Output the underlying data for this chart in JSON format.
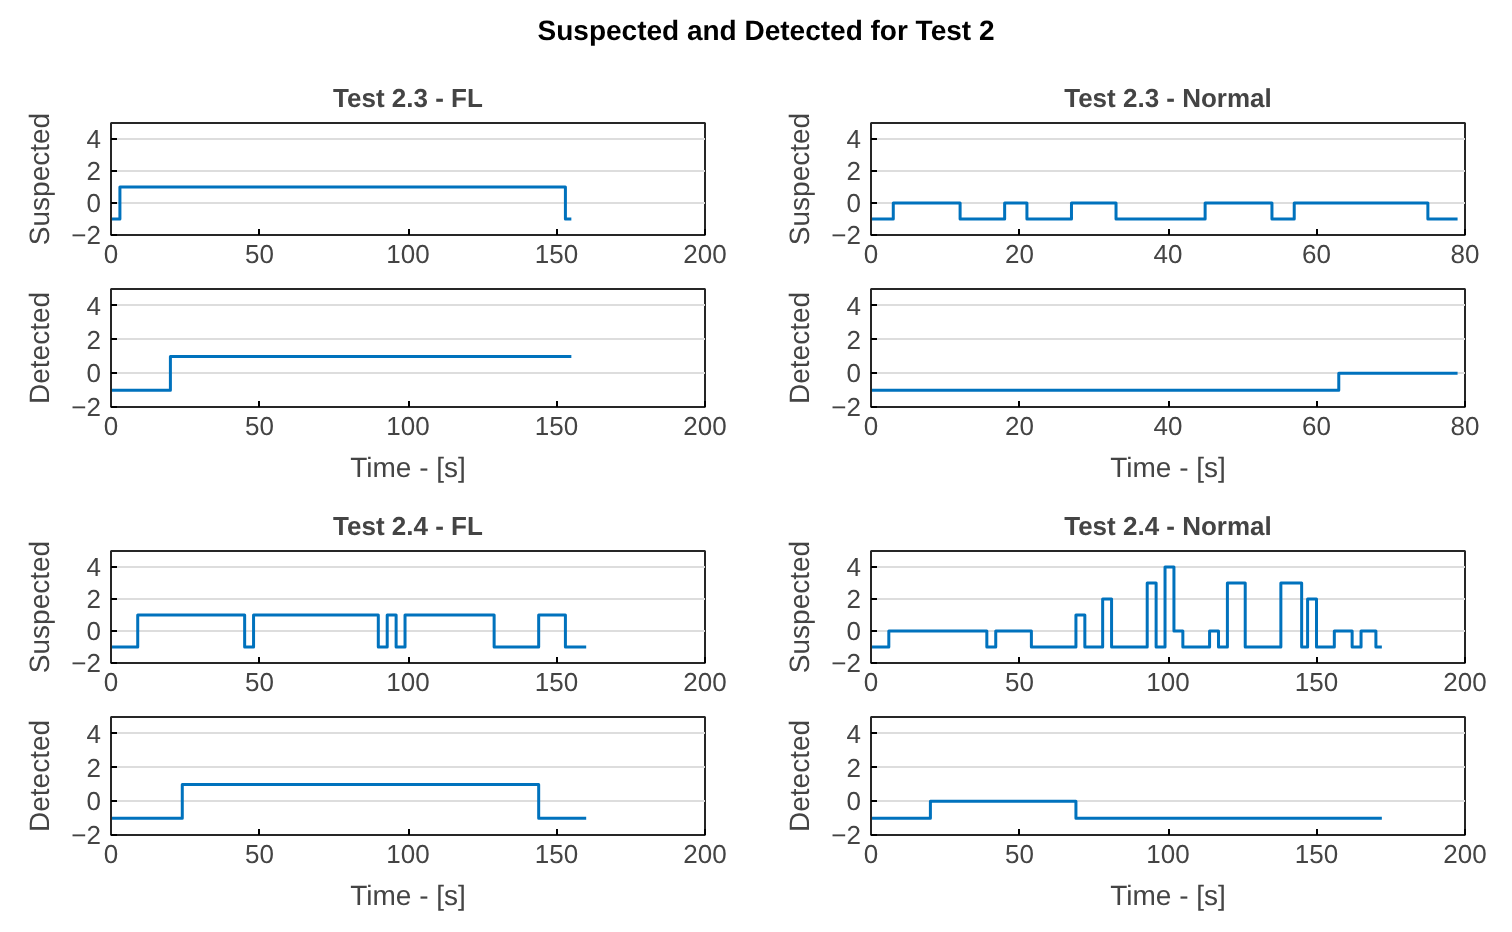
{
  "chart_data": [
    {
      "type": "step",
      "title": "Test 2.3 - FL",
      "ylabel": "Suspected",
      "annotations": [
        "Suspected and Detected for Test 2"
      ],
      "x": [
        0,
        3,
        153,
        155
      ],
      "values": [
        -1,
        1,
        -1,
        -1
      ],
      "color": "#0072bd",
      "xlim": [
        0,
        200
      ],
      "xticks": [
        0,
        50,
        100,
        150,
        200
      ],
      "ylim": [
        -2,
        5
      ],
      "yticks": [
        -2,
        0,
        2,
        4
      ],
      "grid": "y"
    },
    {
      "type": "step",
      "ylabel": "Detected",
      "xlabel": "Time - [s]",
      "x": [
        0,
        20,
        155
      ],
      "values": [
        -1,
        1,
        1
      ],
      "color": "#0072bd",
      "xlim": [
        0,
        200
      ],
      "xticks": [
        0,
        50,
        100,
        150,
        200
      ],
      "ylim": [
        -2,
        5
      ],
      "yticks": [
        -2,
        0,
        2,
        4
      ],
      "grid": "y"
    },
    {
      "type": "step",
      "title": "Test 2.3 - Normal",
      "ylabel": "Suspected",
      "x": [
        0,
        3,
        12,
        18,
        21,
        27,
        33,
        45,
        54,
        57,
        75,
        79
      ],
      "values": [
        -1,
        0,
        -1,
        0,
        -1,
        0,
        -1,
        0,
        -1,
        0,
        -1,
        -1
      ],
      "color": "#0072bd",
      "xlim": [
        0,
        80
      ],
      "xticks": [
        0,
        20,
        40,
        60,
        80
      ],
      "ylim": [
        -2,
        5
      ],
      "yticks": [
        -2,
        0,
        2,
        4
      ],
      "grid": "y"
    },
    {
      "type": "step",
      "ylabel": "Detected",
      "xlabel": "Time - [s]",
      "x": [
        0,
        63,
        79
      ],
      "values": [
        -1,
        0,
        0
      ],
      "color": "#0072bd",
      "xlim": [
        0,
        80
      ],
      "xticks": [
        0,
        20,
        40,
        60,
        80
      ],
      "ylim": [
        -2,
        5
      ],
      "yticks": [
        -2,
        0,
        2,
        4
      ],
      "grid": "y"
    },
    {
      "type": "step",
      "title": "Test 2.4 - FL",
      "ylabel": "Suspected",
      "x": [
        0,
        9,
        45,
        48,
        90,
        93,
        96,
        99,
        129,
        144,
        153,
        160
      ],
      "values": [
        -1,
        1,
        -1,
        1,
        -1,
        1,
        -1,
        1,
        -1,
        1,
        -1,
        -1
      ],
      "color": "#0072bd",
      "xlim": [
        0,
        200
      ],
      "xticks": [
        0,
        50,
        100,
        150,
        200
      ],
      "ylim": [
        -2,
        5
      ],
      "yticks": [
        -2,
        0,
        2,
        4
      ],
      "grid": "y"
    },
    {
      "type": "step",
      "ylabel": "Detected",
      "xlabel": "Time - [s]",
      "x": [
        0,
        24,
        144,
        160
      ],
      "values": [
        -1,
        1,
        -1,
        -1
      ],
      "color": "#0072bd",
      "xlim": [
        0,
        200
      ],
      "xticks": [
        0,
        50,
        100,
        150,
        200
      ],
      "ylim": [
        -2,
        5
      ],
      "yticks": [
        -2,
        0,
        2,
        4
      ],
      "grid": "y"
    },
    {
      "type": "step",
      "title": "Test 2.4 - Normal",
      "ylabel": "Suspected",
      "x": [
        0,
        6,
        39,
        42,
        54,
        69,
        72,
        78,
        81,
        93,
        96,
        99,
        102,
        105,
        114,
        117,
        120,
        126,
        138,
        145,
        147,
        150,
        156,
        162,
        165,
        170,
        172
      ],
      "values": [
        -1,
        0,
        -1,
        0,
        -1,
        1,
        -1,
        2,
        -1,
        3,
        -1,
        4,
        0,
        -1,
        0,
        -1,
        3,
        -1,
        3,
        -1,
        2,
        -1,
        0,
        -1,
        0,
        -1,
        -1
      ],
      "color": "#0072bd",
      "xlim": [
        0,
        200
      ],
      "xticks": [
        0,
        50,
        100,
        150,
        200
      ],
      "ylim": [
        -2,
        5
      ],
      "yticks": [
        -2,
        0,
        2,
        4
      ],
      "grid": "y"
    },
    {
      "type": "step",
      "ylabel": "Detected",
      "xlabel": "Time - [s]",
      "x": [
        0,
        20,
        69,
        172
      ],
      "values": [
        -1,
        0,
        -1,
        -1
      ],
      "color": "#0072bd",
      "xlim": [
        0,
        200
      ],
      "xticks": [
        0,
        50,
        100,
        150,
        200
      ],
      "ylim": [
        -2,
        5
      ],
      "yticks": [
        -2,
        0,
        2,
        4
      ],
      "grid": "y"
    }
  ]
}
